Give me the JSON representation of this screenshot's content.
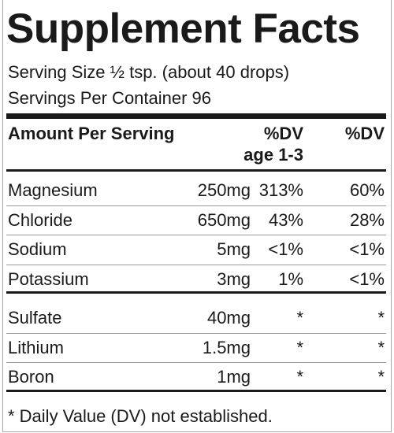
{
  "title": "Supplement Facts",
  "serving_size": "Serving Size ½ tsp. (about 40 drops)",
  "servings_per_container": "Servings Per Container 96",
  "header": {
    "amount": "Amount Per Serving",
    "dv_child": "%DV",
    "dv_child_age": "age 1-3",
    "dv": "%DV"
  },
  "groups": [
    [
      [
        "Magnesium",
        "250mg",
        "313%",
        "60%"
      ],
      [
        "Chloride",
        "650mg",
        "43%",
        "28%"
      ],
      [
        "Sodium",
        "5mg",
        "<1%",
        "<1%"
      ],
      [
        "Potassium",
        "3mg",
        "1%",
        "<1%"
      ]
    ],
    [
      [
        "Sulfate",
        "40mg",
        "*",
        "*"
      ],
      [
        "Lithium",
        "1.5mg",
        "*",
        "*"
      ],
      [
        "Boron",
        "1mg",
        "*",
        "*"
      ]
    ]
  ],
  "footnote": "* Daily Value (DV) not established."
}
